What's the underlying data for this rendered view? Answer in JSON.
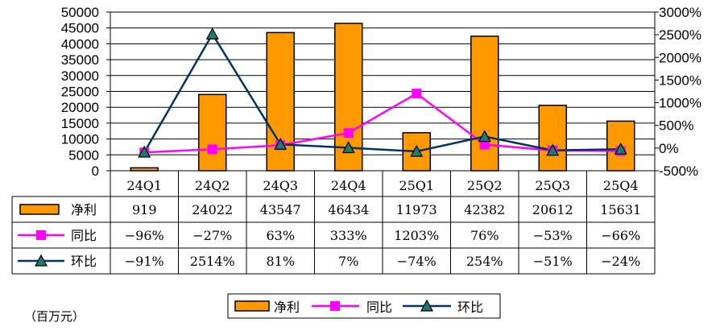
{
  "unit_label": "（百万元）",
  "chart_data": {
    "type": "bar",
    "categories": [
      "24Q1",
      "24Q2",
      "24Q3",
      "24Q4",
      "25Q1",
      "25Q2",
      "25Q3",
      "25Q4"
    ],
    "series": [
      {
        "name": "净利",
        "type": "bar",
        "axis": "left",
        "color": "#FF9900",
        "values": [
          919,
          24022,
          43547,
          46434,
          11973,
          42382,
          20612,
          15631
        ]
      },
      {
        "name": "同比",
        "type": "line",
        "axis": "right",
        "color": "#FF00FF",
        "marker": "square",
        "values": [
          -96,
          -27,
          63,
          333,
          1203,
          76,
          -53,
          -66
        ],
        "labels": [
          "−96%",
          "−27%",
          "63%",
          "333%",
          "1203%",
          "76%",
          "−53%",
          "−66%"
        ]
      },
      {
        "name": "环比",
        "type": "line",
        "axis": "right",
        "color": "#003366",
        "marker": "triangle",
        "values": [
          -91,
          2514,
          81,
          7,
          -74,
          254,
          -51,
          -24
        ],
        "labels": [
          "−91%",
          "2514%",
          "81%",
          "7%",
          "−74%",
          "254%",
          "−51%",
          "−24%"
        ]
      }
    ],
    "y_left": {
      "min": 0,
      "max": 50000,
      "ticks": [
        "0",
        "5000",
        "10000",
        "15000",
        "20000",
        "25000",
        "30000",
        "35000",
        "40000",
        "45000",
        "50000"
      ]
    },
    "y_right": {
      "min": -500,
      "max": 3000,
      "ticks": [
        "-500%",
        "0%",
        "500%",
        "1000%",
        "1500%",
        "2000%",
        "2500%",
        "3000%"
      ]
    },
    "grid": "horizontal",
    "legend": "bottom-center",
    "data_table": true
  }
}
